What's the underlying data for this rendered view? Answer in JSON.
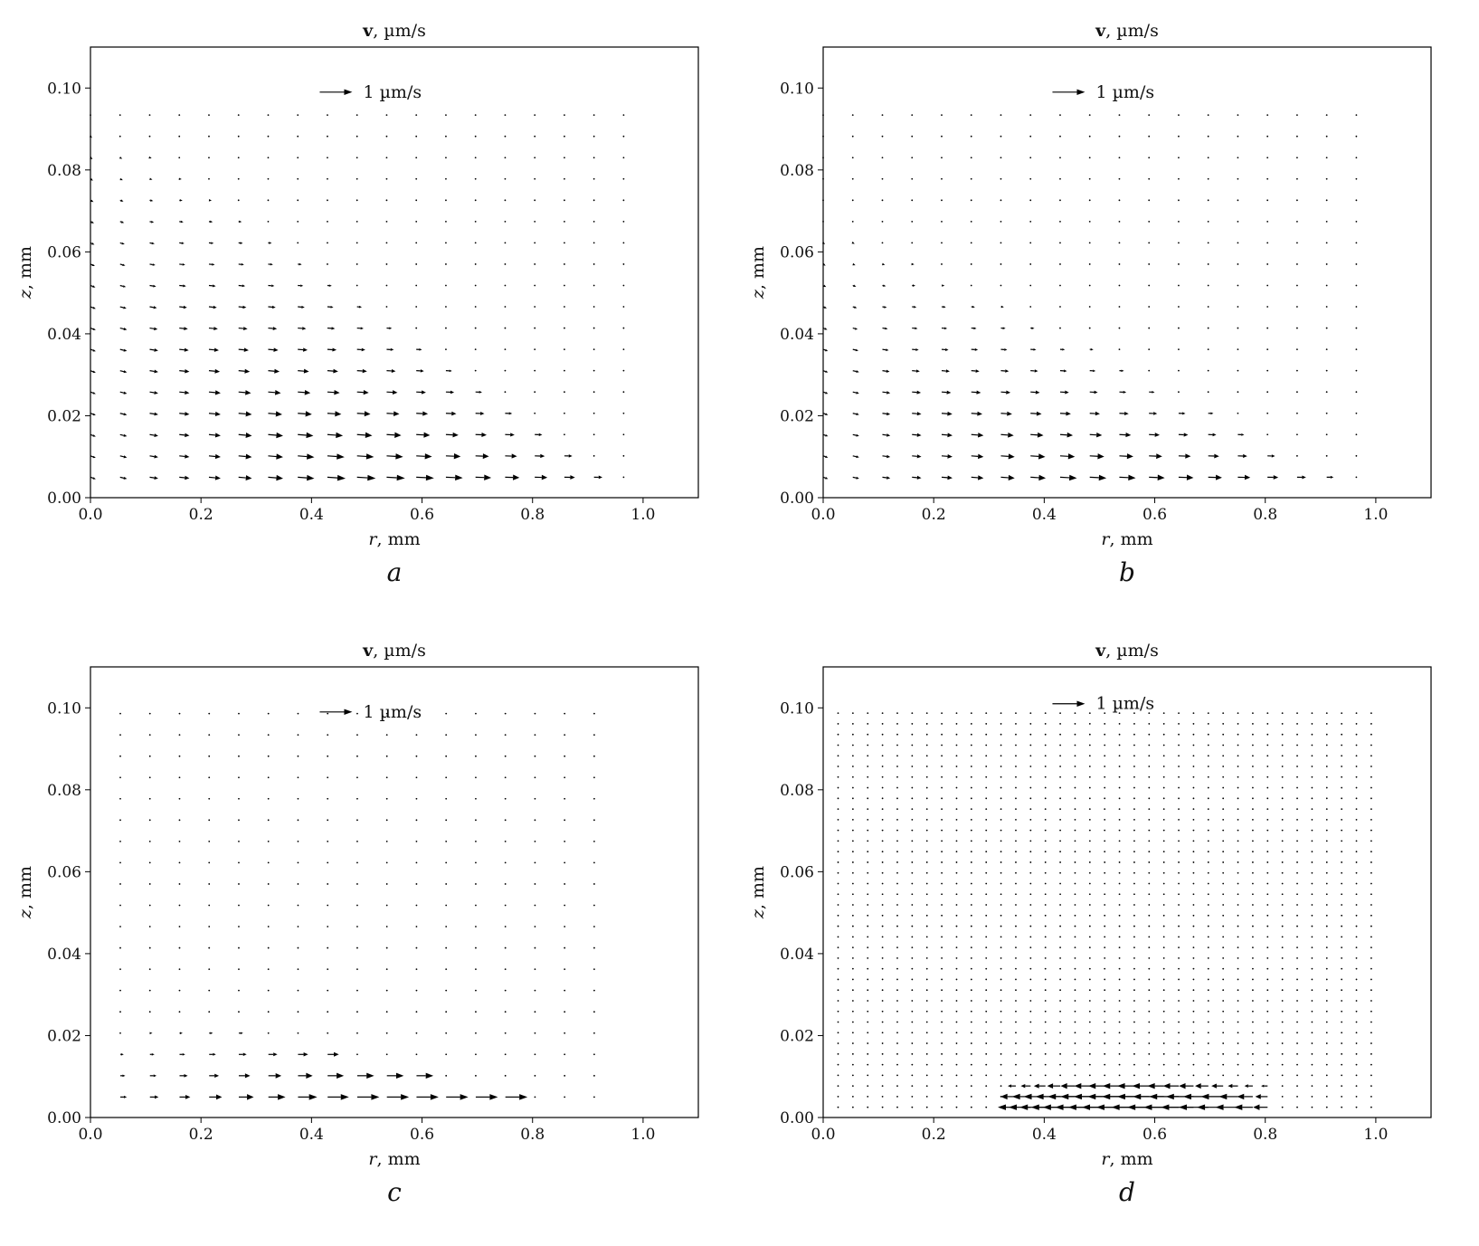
{
  "chart_data": [
    {
      "type": "quiver",
      "panel_label": "a",
      "title_symbol": "v",
      "title_unit": ", µm/s",
      "xlabel_symbol": "r",
      "xlabel_unit": ", mm",
      "ylabel_symbol": "z",
      "ylabel_unit": ", mm",
      "xlim": [
        0,
        1.1
      ],
      "ylim": [
        0,
        0.11
      ],
      "xticks": [
        "0.0",
        "0.2",
        "0.4",
        "0.6",
        "0.8",
        "1.0"
      ],
      "yticks": [
        "0.00",
        "0.02",
        "0.04",
        "0.06",
        "0.08",
        "0.10"
      ],
      "key_label": "1 µm/s",
      "key_r": 0.5,
      "key_z": 0.099,
      "grid": {
        "r_start": 0.0,
        "r_step": 0.0536,
        "r_count": 19,
        "z_start": 0.005,
        "z_step": 0.0052,
        "z_count": 18
      },
      "field": {
        "mode": "wedge",
        "r_max": 1.0,
        "z_top": 0.095,
        "umax": 0.65,
        "w_frac": -0.12
      },
      "grid_on": false
    },
    {
      "type": "quiver",
      "panel_label": "b",
      "title_symbol": "v",
      "title_unit": ", µm/s",
      "xlabel_symbol": "r",
      "xlabel_unit": ", mm",
      "ylabel_symbol": "z",
      "ylabel_unit": ", mm",
      "xlim": [
        0,
        1.1
      ],
      "ylim": [
        0,
        0.11
      ],
      "xticks": [
        "0.0",
        "0.2",
        "0.4",
        "0.6",
        "0.8",
        "1.0"
      ],
      "yticks": [
        "0.00",
        "0.02",
        "0.04",
        "0.06",
        "0.08",
        "0.10"
      ],
      "key_label": "1 µm/s",
      "key_r": 0.5,
      "key_z": 0.099,
      "grid": {
        "r_start": 0.0,
        "r_step": 0.0536,
        "r_count": 19,
        "z_start": 0.005,
        "z_step": 0.0052,
        "z_count": 18
      },
      "field": {
        "mode": "wedge",
        "r_max": 1.0,
        "z_top": 0.07,
        "umax": 0.6,
        "w_frac": -0.1
      },
      "grid_on": false
    },
    {
      "type": "quiver",
      "panel_label": "c",
      "title_symbol": "v",
      "title_unit": ", µm/s",
      "xlabel_symbol": "r",
      "xlabel_unit": ", mm",
      "ylabel_symbol": "z",
      "ylabel_unit": ", mm",
      "xlim": [
        0,
        1.1
      ],
      "ylim": [
        0,
        0.11
      ],
      "xticks": [
        "0.0",
        "0.2",
        "0.4",
        "0.6",
        "0.8",
        "1.0"
      ],
      "yticks": [
        "0.00",
        "0.02",
        "0.04",
        "0.06",
        "0.08",
        "0.10"
      ],
      "key_label": "1 µm/s",
      "key_r": 0.5,
      "key_z": 0.099,
      "grid": {
        "r_start": 0.054,
        "r_step": 0.0536,
        "r_count": 17,
        "z_start": 0.005,
        "z_step": 0.0052,
        "z_count": 19
      },
      "field": {
        "mode": "bottom",
        "r_max": 0.82,
        "z_top": 0.027,
        "umax": 0.5,
        "w_frac": 0.0
      },
      "grid_on": false
    },
    {
      "type": "quiver",
      "panel_label": "d",
      "title_symbol": "v",
      "title_unit": ", µm/s",
      "xlabel_symbol": "r",
      "xlabel_unit": ", mm",
      "ylabel_symbol": "z",
      "ylabel_unit": ", mm",
      "xlim": [
        0,
        1.1
      ],
      "ylim": [
        0,
        0.11
      ],
      "xticks": [
        "0.0",
        "0.2",
        "0.4",
        "0.6",
        "0.8",
        "1.0"
      ],
      "yticks": [
        "0.00",
        "0.02",
        "0.04",
        "0.06",
        "0.08",
        "0.10"
      ],
      "key_label": "1 µm/s",
      "key_r": 0.5,
      "key_z": 0.101,
      "grid": {
        "r_start": 0.027,
        "r_step": 0.0268,
        "r_count": 37,
        "z_start": 0.0025,
        "z_step": 0.0026,
        "z_count": 38
      },
      "field": {
        "mode": "reverse",
        "r_max": 0.8,
        "z_top": 0.009,
        "umax": 0.7,
        "w_frac": 0.0
      },
      "grid_on": false
    }
  ]
}
